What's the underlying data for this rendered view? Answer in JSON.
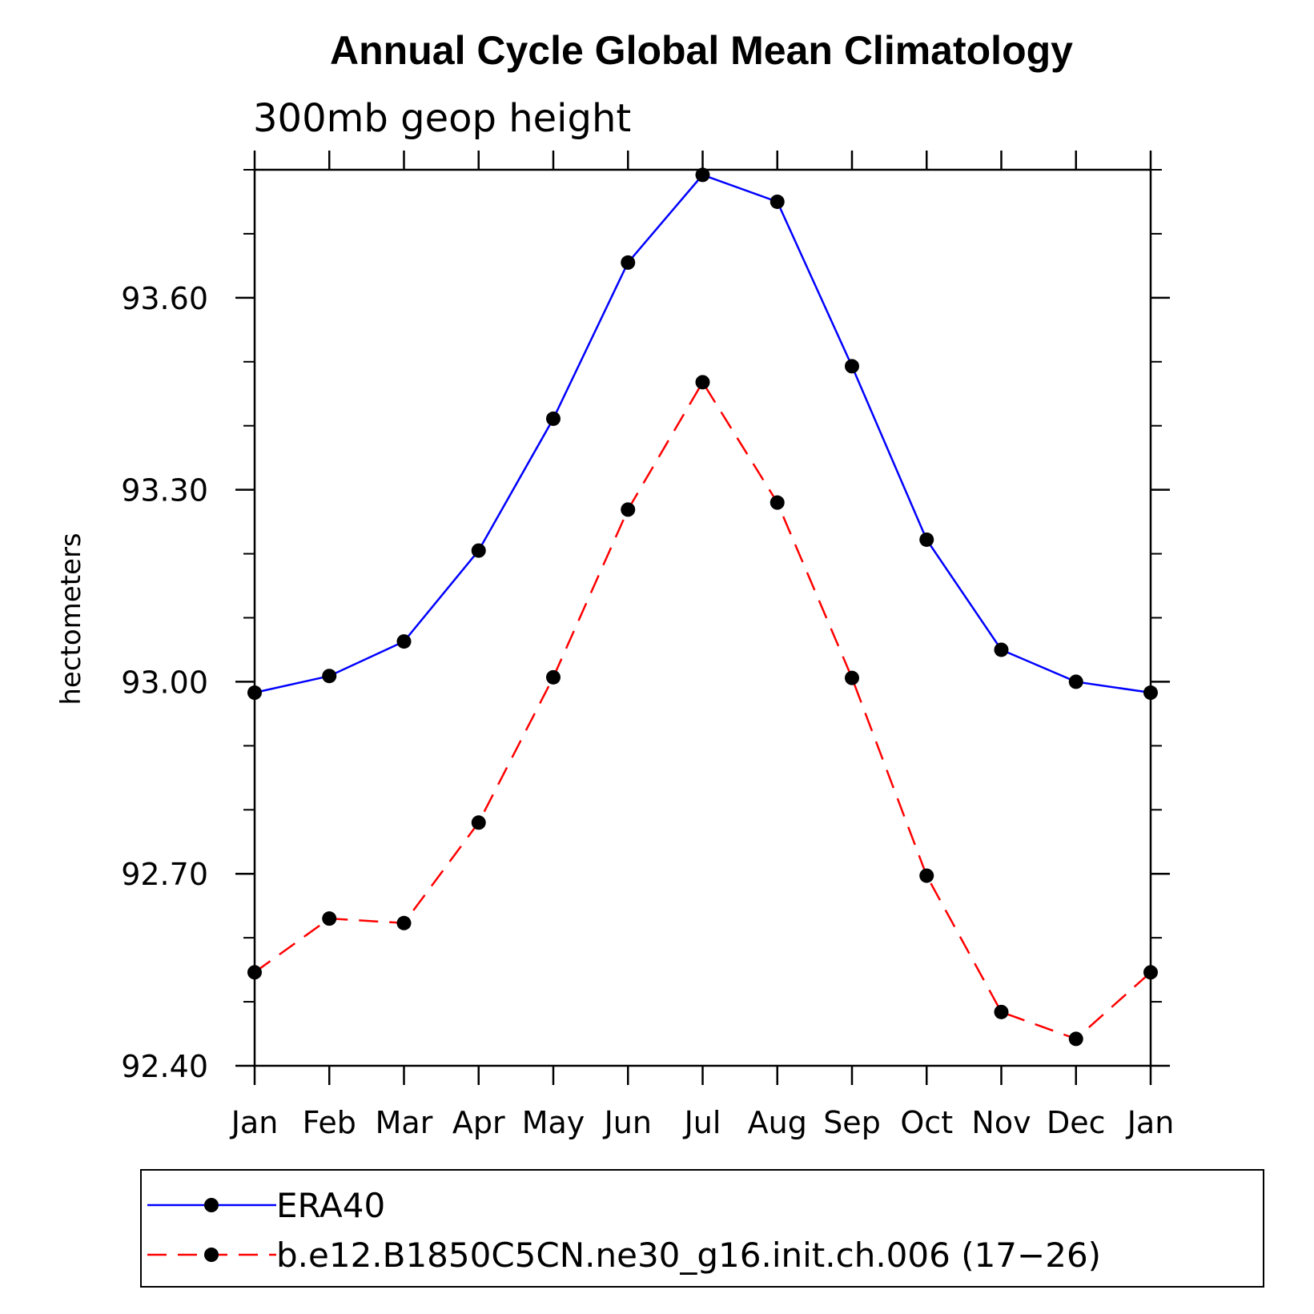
{
  "chart_data": {
    "type": "line",
    "title": "Annual Cycle Global Mean Climatology",
    "subtitle": "300mb geop height",
    "ylabel": "hectometers",
    "xlabel": "",
    "categories": [
      "Jan",
      "Feb",
      "Mar",
      "Apr",
      "May",
      "Jun",
      "Jul",
      "Aug",
      "Sep",
      "Oct",
      "Nov",
      "Dec",
      "Jan"
    ],
    "ylim": [
      92.4,
      93.8
    ],
    "yticks": [
      92.4,
      92.7,
      93.0,
      93.3,
      93.6
    ],
    "ytick_labels": [
      "92.40",
      "92.70",
      "93.00",
      "93.30",
      "93.60"
    ],
    "minor_step": 0.1,
    "legend_position": "bottom",
    "series": [
      {
        "name": "ERA40",
        "color": "#0000ff",
        "dash": "solid",
        "values": [
          92.983,
          93.009,
          93.063,
          93.205,
          93.411,
          93.655,
          93.792,
          93.75,
          93.493,
          93.222,
          93.05,
          93.0,
          92.983
        ]
      },
      {
        "name": "b.e12.B1850C5CN.ne30_g16.init.ch.006 (17−26)",
        "color": "#ff0000",
        "dash": "dashed",
        "values": [
          92.546,
          92.63,
          92.623,
          92.78,
          93.007,
          93.269,
          93.468,
          93.28,
          93.006,
          92.697,
          92.484,
          92.442,
          92.546
        ]
      }
    ]
  }
}
